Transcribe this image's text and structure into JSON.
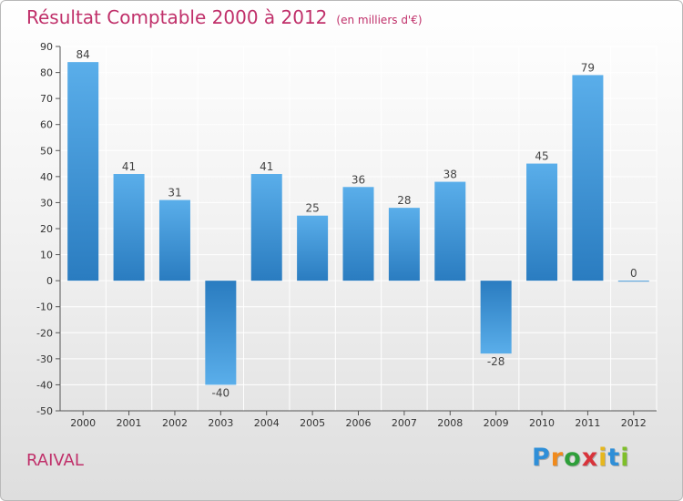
{
  "header": {
    "title": "Résultat Comptable 2000 à 2012",
    "subtitle": "(en milliers d'€)"
  },
  "footer": {
    "commune": "RAIVAL",
    "logo_letters": [
      "P",
      "r",
      "o",
      "x",
      "i",
      "t",
      "i"
    ],
    "logo_colors": [
      "#2f8fd8",
      "#f08a1c",
      "#2e9f3a",
      "#d8333a",
      "#e6b71e",
      "#2f8fd8",
      "#7fbf2a"
    ]
  },
  "colors": {
    "bar_top": "#5aaeea",
    "bar_bottom": "#2a7cc0",
    "grid": "#ffffff",
    "axis": "#555555"
  },
  "chart_data": {
    "type": "bar",
    "title": "Résultat Comptable 2000 à 2012",
    "subtitle": "(en milliers d'€)",
    "categories": [
      "2000",
      "2001",
      "2002",
      "2003",
      "2004",
      "2005",
      "2006",
      "2007",
      "2008",
      "2009",
      "2010",
      "2011",
      "2012"
    ],
    "values": [
      84,
      41,
      31,
      -40,
      41,
      25,
      36,
      28,
      38,
      -28,
      45,
      79,
      0
    ],
    "ylim": [
      -50,
      90
    ],
    "yticks": [
      -50,
      -40,
      -30,
      -20,
      -10,
      0,
      10,
      20,
      30,
      40,
      50,
      60,
      70,
      80,
      90
    ],
    "xlabel": "",
    "ylabel": "",
    "grid": true
  }
}
